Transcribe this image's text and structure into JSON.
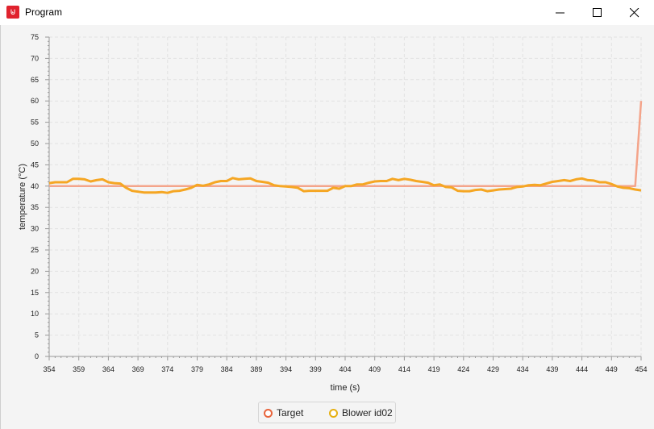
{
  "window": {
    "title": "Program",
    "icon": "app-logo-icon",
    "controls": [
      "minimize-icon",
      "maximize-icon",
      "close-icon"
    ]
  },
  "colors": {
    "target": "#f4a48a",
    "blower": "#f5a623",
    "target_marker": "#e8643c",
    "blower_marker": "#e6b012",
    "grid": "#e2e2e2",
    "plot_bg": "#f4f4f4"
  },
  "chart_data": {
    "type": "line",
    "title": "",
    "xlabel": "time (s)",
    "ylabel": "temperature (°C)",
    "xlim": [
      354,
      454
    ],
    "ylim": [
      0,
      75
    ],
    "x_ticks": [
      354,
      359,
      364,
      369,
      374,
      379,
      384,
      389,
      394,
      399,
      404,
      409,
      414,
      419,
      424,
      429,
      434,
      439,
      444,
      449,
      454
    ],
    "y_ticks": [
      0,
      5,
      10,
      15,
      20,
      25,
      30,
      35,
      40,
      45,
      50,
      55,
      60,
      65,
      70,
      75
    ],
    "grid": true,
    "legend_position": "bottom-center",
    "series": [
      {
        "name": "Target",
        "x": [
          354,
          453,
          454
        ],
        "values": [
          40,
          40,
          60
        ]
      },
      {
        "name": "Blower id02",
        "x": [
          354,
          355,
          356,
          357,
          358,
          359,
          360,
          361,
          362,
          363,
          364,
          365,
          366,
          367,
          368,
          369,
          370,
          371,
          372,
          373,
          374,
          375,
          376,
          377,
          378,
          379,
          380,
          381,
          382,
          383,
          384,
          385,
          386,
          387,
          388,
          389,
          390,
          391,
          392,
          393,
          394,
          395,
          396,
          397,
          398,
          399,
          400,
          401,
          402,
          403,
          404,
          405,
          406,
          407,
          408,
          409,
          410,
          411,
          412,
          413,
          414,
          415,
          416,
          417,
          418,
          419,
          420,
          421,
          422,
          423,
          424,
          425,
          426,
          427,
          428,
          429,
          430,
          431,
          432,
          433,
          434,
          435,
          436,
          437,
          438,
          439,
          440,
          441,
          442,
          443,
          444,
          445,
          446,
          447,
          448,
          449,
          450,
          451,
          452,
          453,
          454
        ],
        "values": [
          40.7,
          40.9,
          40.9,
          40.9,
          41.7,
          41.7,
          41.6,
          41.1,
          41.4,
          41.6,
          40.9,
          40.7,
          40.6,
          39.6,
          38.9,
          38.7,
          38.5,
          38.5,
          38.5,
          38.6,
          38.4,
          38.8,
          38.9,
          39.2,
          39.6,
          40.3,
          40.1,
          40.4,
          40.9,
          41.2,
          41.2,
          41.9,
          41.6,
          41.7,
          41.8,
          41.2,
          41.0,
          40.8,
          40.2,
          40.0,
          39.9,
          39.8,
          39.6,
          38.8,
          38.9,
          38.9,
          38.9,
          38.9,
          39.6,
          39.4,
          40.0,
          40.0,
          40.4,
          40.4,
          40.8,
          41.1,
          41.2,
          41.2,
          41.7,
          41.4,
          41.7,
          41.5,
          41.2,
          41.0,
          40.8,
          40.2,
          40.4,
          39.8,
          39.7,
          38.9,
          38.8,
          38.8,
          39.1,
          39.2,
          38.8,
          39.0,
          39.2,
          39.3,
          39.4,
          39.8,
          39.9,
          40.2,
          40.3,
          40.2,
          40.6,
          41.0,
          41.2,
          41.4,
          41.2,
          41.6,
          41.8,
          41.4,
          41.3,
          40.9,
          40.9,
          40.5,
          39.9,
          39.6,
          39.5,
          39.2,
          39.0
        ]
      }
    ]
  }
}
